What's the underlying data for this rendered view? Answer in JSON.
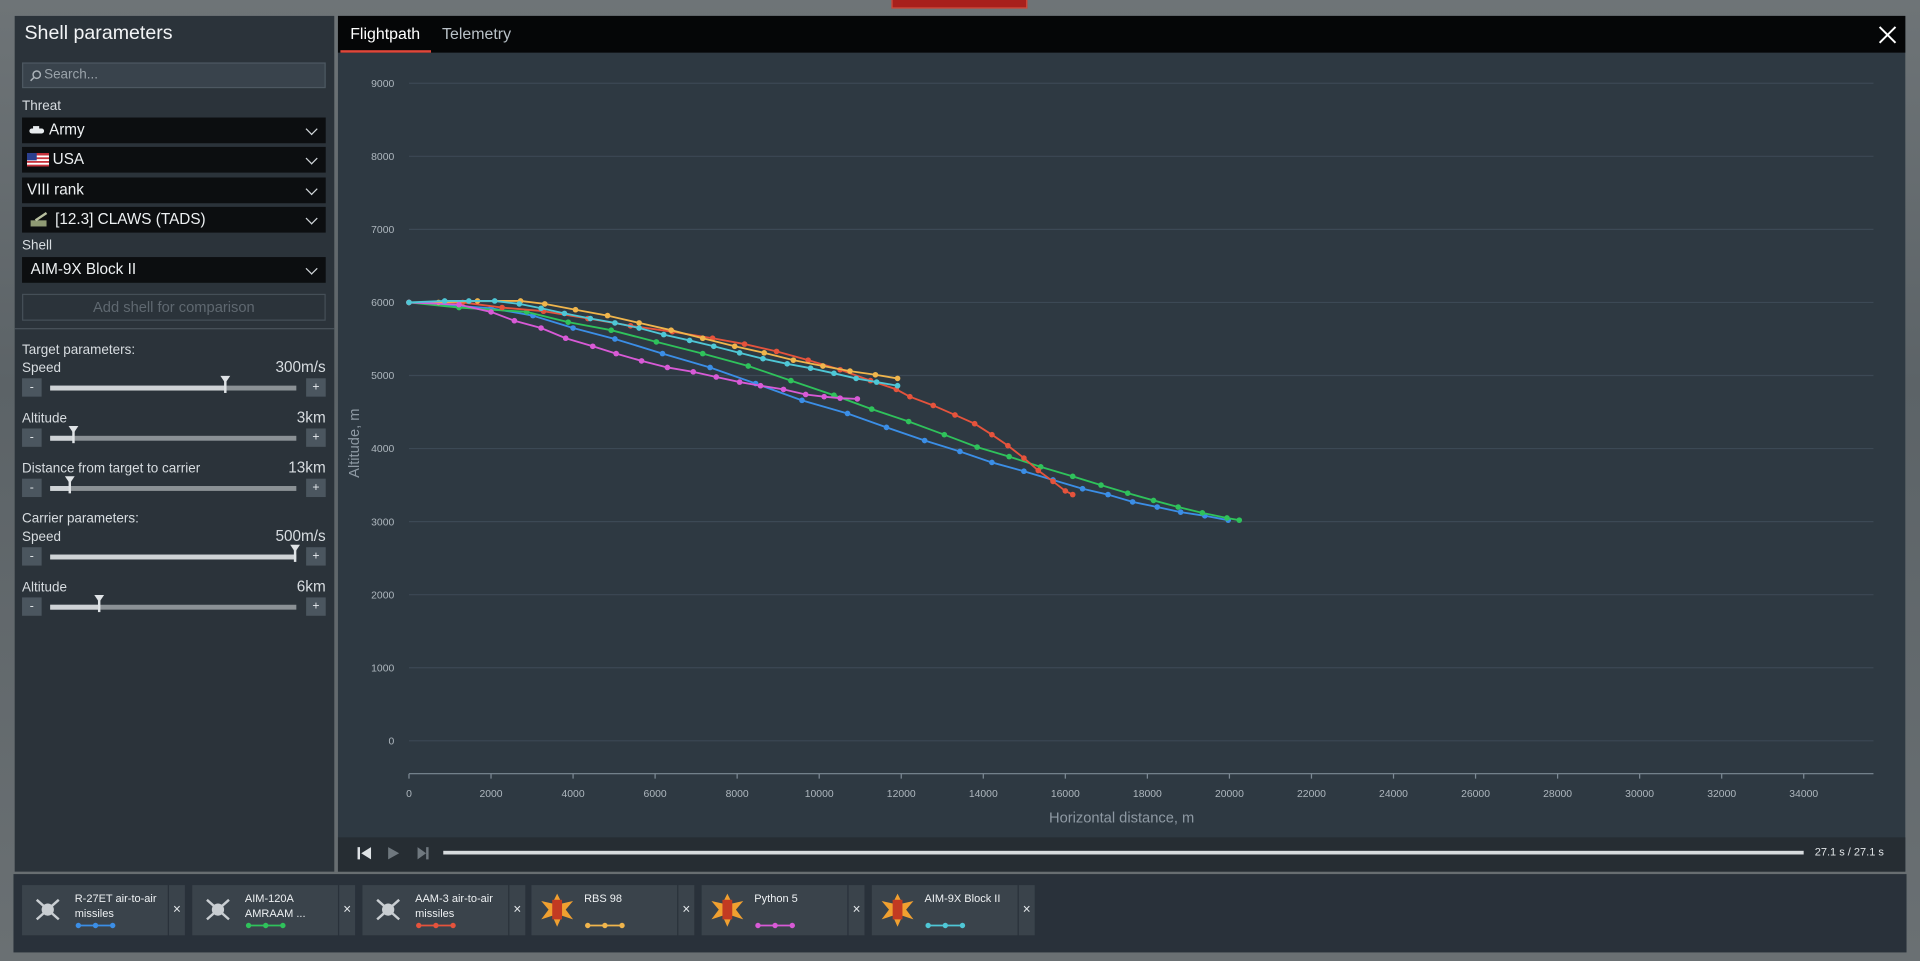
{
  "header": {
    "title": "Shell parameters",
    "search_placeholder": "Search..."
  },
  "filters": {
    "threat_label": "Threat",
    "threat": [
      "Army",
      "USA",
      "VIII rank",
      "[12.3] CLAWS (TADS)"
    ],
    "shell_label": "Shell",
    "shell": "AIM-9X Block II",
    "add_button": "Add shell for comparison"
  },
  "parameters": [
    {
      "title": "Target parameters:",
      "params": [
        {
          "name": "Speed",
          "value": "300m/s"
        },
        {
          "name": "Altitude",
          "value": "3km"
        },
        {
          "name": "Distance from target to carrier",
          "value": "13km"
        }
      ]
    },
    {
      "title": "Carrier parameters:",
      "params": [
        {
          "name": "Speed",
          "value": "500m/s"
        },
        {
          "name": "Altitude",
          "value": "6km"
        }
      ]
    }
  ],
  "tabs": [
    "Flightpath",
    "Telemetry"
  ],
  "playback": {
    "time": "27.1 s / 27.1 s"
  },
  "chart_data": {
    "type": "line",
    "x_label": "Horizontal distance, m",
    "y_label": "Altitude, m",
    "xlim": [
      0,
      35700
    ],
    "ylim": [
      -450,
      9000
    ],
    "xticks": [
      0,
      2000,
      4000,
      6000,
      8000,
      10000,
      12000,
      14000,
      16000,
      18000,
      20000,
      22000,
      24000,
      26000,
      28000,
      30000,
      32000,
      34000
    ],
    "yticks": [
      0,
      1000,
      2000,
      3000,
      4000,
      5000,
      6000,
      7000,
      8000,
      9000
    ],
    "grid": true,
    "series": [
      {
        "name": "R-27ET air-to-air missiles",
        "color": "#3b8ee6",
        "x": [
          0,
          2000,
          3020,
          4000,
          5020,
          6180,
          7340,
          8450,
          9580,
          10690,
          11640,
          12570,
          13430,
          14210,
          14990,
          15700,
          16420,
          17040,
          17640,
          18240,
          18810,
          19400,
          19970
        ],
        "values": [
          6000,
          5920,
          5820,
          5650,
          5500,
          5300,
          5110,
          4890,
          4660,
          4480,
          4290,
          4110,
          3960,
          3810,
          3690,
          3570,
          3450,
          3370,
          3270,
          3200,
          3130,
          3080,
          3020
        ]
      },
      {
        "name": "AIM-120A AMRAAM ...",
        "color": "#2fc25b",
        "x": [
          0,
          1220,
          2870,
          3880,
          4930,
          6030,
          7160,
          8270,
          9310,
          10360,
          11280,
          12180,
          13050,
          13850,
          14630,
          15400,
          16180,
          16870,
          17520,
          18150,
          18750,
          19340,
          19940,
          20240
        ],
        "values": [
          6000,
          5930,
          5870,
          5730,
          5620,
          5460,
          5300,
          5130,
          4930,
          4730,
          4540,
          4370,
          4190,
          4020,
          3890,
          3750,
          3620,
          3500,
          3390,
          3290,
          3200,
          3120,
          3050,
          3020
        ]
      },
      {
        "name": "AAM-3 air-to-air missiles",
        "color": "#e5533c",
        "x": [
          0,
          1310,
          2270,
          3280,
          4360,
          5400,
          6420,
          7400,
          8180,
          8960,
          9730,
          10510,
          11250,
          11880,
          12210,
          12780,
          13310,
          13790,
          14210,
          14600,
          14990,
          15340,
          15700,
          16000,
          16180
        ],
        "values": [
          6000,
          6000,
          5930,
          5880,
          5780,
          5680,
          5600,
          5510,
          5430,
          5330,
          5210,
          5080,
          4930,
          4810,
          4710,
          4590,
          4460,
          4340,
          4190,
          4040,
          3870,
          3700,
          3550,
          3420,
          3370
        ]
      },
      {
        "name": "RBS 98",
        "color": "#f0b54c",
        "x": [
          0,
          720,
          1670,
          2720,
          3310,
          4060,
          4840,
          5610,
          6390,
          7160,
          7940,
          8660,
          9370,
          10090,
          10750,
          11370,
          11910
        ],
        "values": [
          6000,
          6000,
          6020,
          6020,
          5980,
          5900,
          5820,
          5720,
          5620,
          5510,
          5400,
          5310,
          5210,
          5130,
          5060,
          5010,
          4960
        ]
      },
      {
        "name": "Python 5",
        "color": "#d85ad6",
        "x": [
          0,
          1220,
          2000,
          2570,
          3220,
          3820,
          4480,
          5050,
          5670,
          6300,
          6930,
          7490,
          8060,
          8570,
          9130,
          9670,
          10120,
          10510,
          10930
        ],
        "values": [
          6000,
          5970,
          5870,
          5750,
          5650,
          5510,
          5400,
          5300,
          5200,
          5110,
          5050,
          4980,
          4910,
          4860,
          4810,
          4740,
          4710,
          4690,
          4680
        ]
      },
      {
        "name": "AIM-9X Block II",
        "color": "#4fc7d6",
        "x": [
          0,
          870,
          1460,
          2090,
          2690,
          3220,
          3790,
          4420,
          5020,
          5610,
          6210,
          6840,
          7430,
          8060,
          8630,
          9220,
          9790,
          10360,
          10900,
          11400,
          11910
        ],
        "values": [
          6000,
          6020,
          6020,
          6020,
          5980,
          5920,
          5850,
          5780,
          5720,
          5650,
          5560,
          5480,
          5400,
          5310,
          5230,
          5160,
          5100,
          5030,
          4960,
          4910,
          4860
        ]
      }
    ]
  }
}
